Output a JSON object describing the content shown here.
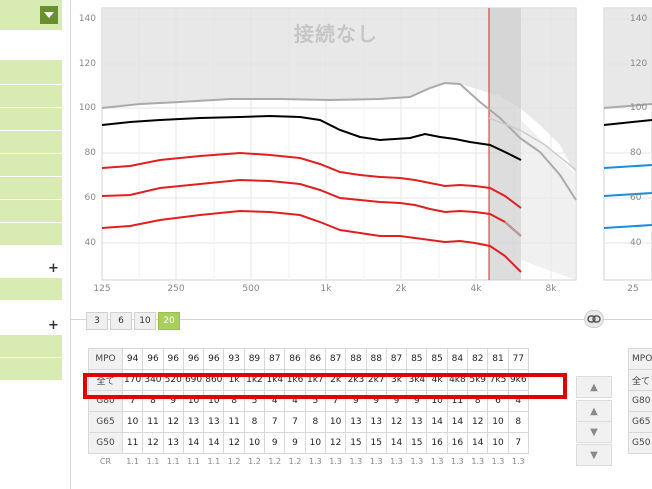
{
  "graph": {
    "status_text": "接続なし",
    "y_ticks": [
      "140",
      "120",
      "100",
      "80",
      "60",
      "40"
    ],
    "x_ticks": [
      "125",
      "250",
      "500",
      "1k",
      "2k",
      "4k",
      "8k"
    ]
  },
  "right_graph": {
    "y_ticks": [
      "140",
      "120",
      "100",
      "80",
      "60",
      "40"
    ],
    "x_ticks": [
      "25"
    ]
  },
  "bands": [
    "3",
    "6",
    "10",
    "20"
  ],
  "selected_band": "20",
  "table": {
    "rows": [
      {
        "header": "MPO",
        "values": [
          "94",
          "96",
          "96",
          "96",
          "96",
          "93",
          "89",
          "87",
          "86",
          "86",
          "87",
          "88",
          "88",
          "87",
          "85",
          "85",
          "84",
          "82",
          "81",
          "77"
        ]
      },
      {
        "header": "全て",
        "values": [
          "170",
          "340",
          "520",
          "690",
          "860",
          "1k",
          "1k2",
          "1k4",
          "1k6",
          "1k7",
          "2k",
          "2k3",
          "2k7",
          "3k",
          "3k4",
          "4k",
          "4k8",
          "5k9",
          "7k5",
          "9k6"
        ]
      },
      {
        "header": "G80",
        "values": [
          "7",
          "8",
          "9",
          "10",
          "10",
          "8",
          "5",
          "4",
          "4",
          "5",
          "7",
          "9",
          "9",
          "9",
          "9",
          "10",
          "11",
          "8",
          "6",
          "4"
        ]
      },
      {
        "header": "G65",
        "values": [
          "10",
          "11",
          "12",
          "13",
          "13",
          "11",
          "8",
          "7",
          "7",
          "8",
          "10",
          "13",
          "13",
          "12",
          "13",
          "14",
          "14",
          "12",
          "10",
          "8"
        ]
      },
      {
        "header": "G50",
        "values": [
          "11",
          "12",
          "13",
          "14",
          "14",
          "12",
          "10",
          "9",
          "9",
          "10",
          "12",
          "15",
          "15",
          "14",
          "15",
          "16",
          "16",
          "14",
          "10",
          "7"
        ]
      }
    ],
    "cr_label": "CR",
    "cr_values": [
      "1.1",
      "1.1",
      "1.1",
      "1.1",
      "1.1",
      "1.2",
      "1.2",
      "1.2",
      "1.2",
      "1.3",
      "1.3",
      "1.3",
      "1.3",
      "1.3",
      "1.3",
      "1.3",
      "1.3",
      "1.3",
      "1.3",
      "1.3"
    ]
  },
  "right_table_headers": [
    "MPO",
    "全て",
    "G80",
    "G65",
    "G50"
  ],
  "colors": {
    "accent_green": "#a8d05a",
    "panel_green": "#d7ebb3",
    "highlight_red": "#e00000",
    "curve_red": "#e02020",
    "curve_black": "#000000",
    "curve_gray": "#aaaaaa",
    "curve_blue": "#1a8fd8"
  },
  "icons": {
    "dropdown": "chevron-down-icon",
    "add": "plus-icon",
    "link": "link-icon",
    "top": "double-chevron-up-icon",
    "up": "chevron-up-icon",
    "down": "chevron-down-icon",
    "bottom": "double-chevron-down-icon"
  }
}
